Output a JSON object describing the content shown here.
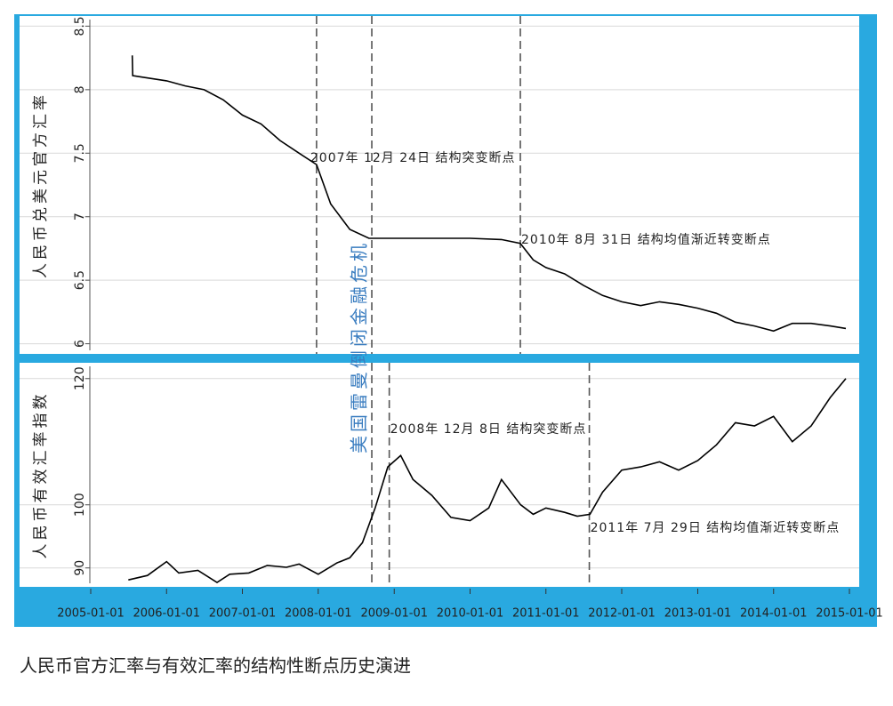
{
  "caption": "人民币官方汇率与有效汇率的结构性断点历史演进",
  "annotation": "美国雷曼倒闭金融危机",
  "chart_data": [
    {
      "type": "line",
      "ylabel": "人民币兑美元官方汇率",
      "color": "#000000",
      "xlim": [
        "2005-01-01",
        "2015-01-01"
      ],
      "ylim": [
        5.92,
        8.58
      ],
      "yticks": [
        6,
        6.5,
        7,
        7.5,
        8,
        8.5
      ],
      "grid": true,
      "x": [
        "2005-07-20",
        "2005-07-22",
        "2005-09-01",
        "2006-01-01",
        "2006-04-01",
        "2006-07-01",
        "2006-10-01",
        "2007-01-01",
        "2007-04-01",
        "2007-07-01",
        "2007-10-01",
        "2007-12-24",
        "2008-03-01",
        "2008-06-01",
        "2008-09-01",
        "2009-01-01",
        "2009-06-01",
        "2010-01-01",
        "2010-06-01",
        "2010-08-31",
        "2010-11-01",
        "2011-01-01",
        "2011-04-01",
        "2011-07-01",
        "2011-10-01",
        "2012-01-01",
        "2012-04-01",
        "2012-07-01",
        "2012-10-01",
        "2013-01-01",
        "2013-04-01",
        "2013-07-01",
        "2013-10-01",
        "2014-01-01",
        "2014-04-01",
        "2014-07-01",
        "2014-10-01",
        "2014-12-15"
      ],
      "values": [
        8.27,
        8.11,
        8.1,
        8.07,
        8.03,
        8.0,
        7.92,
        7.8,
        7.73,
        7.6,
        7.5,
        7.41,
        7.1,
        6.9,
        6.83,
        6.83,
        6.83,
        6.83,
        6.82,
        6.79,
        6.66,
        6.6,
        6.55,
        6.46,
        6.38,
        6.33,
        6.3,
        6.33,
        6.31,
        6.28,
        6.24,
        6.17,
        6.14,
        6.1,
        6.16,
        6.16,
        6.14,
        6.12
      ],
      "vlines": [
        {
          "x": "2007-12-24",
          "label": "2007年 12月 24日 结构突变断点"
        },
        {
          "x": "2008-09-15"
        },
        {
          "x": "2010-08-31",
          "label": "2010年 8月 31日 结构均值渐近转变断点"
        }
      ]
    },
    {
      "type": "line",
      "ylabel": "人民币有效汇率指数",
      "color": "#000000",
      "xlim": [
        "2005-01-01",
        "2015-01-01"
      ],
      "ylim": [
        87,
        122.5
      ],
      "yticks": [
        90,
        100,
        120
      ],
      "grid": true,
      "xticks": [
        "2005-01-01",
        "2006-01-01",
        "2007-01-01",
        "2008-01-01",
        "2009-01-01",
        "2010-01-01",
        "2011-01-01",
        "2012-01-01",
        "2013-01-01",
        "2014-01-01",
        "2015-01-01"
      ],
      "x": [
        "2005-07-01",
        "2005-10-01",
        "2006-01-01",
        "2006-03-01",
        "2006-06-01",
        "2006-09-01",
        "2006-11-01",
        "2007-02-01",
        "2007-05-01",
        "2007-08-01",
        "2007-10-01",
        "2008-01-01",
        "2008-04-01",
        "2008-06-01",
        "2008-08-01",
        "2008-10-01",
        "2008-12-01",
        "2009-02-01",
        "2009-04-01",
        "2009-07-01",
        "2009-10-01",
        "2010-01-01",
        "2010-04-01",
        "2010-06-01",
        "2010-09-01",
        "2010-11-01",
        "2011-01-01",
        "2011-04-01",
        "2011-06-01",
        "2011-08-01",
        "2011-10-01",
        "2012-01-01",
        "2012-04-01",
        "2012-07-01",
        "2012-10-01",
        "2013-01-01",
        "2013-04-01",
        "2013-07-01",
        "2013-10-01",
        "2014-01-01",
        "2014-04-01",
        "2014-07-01",
        "2014-10-01",
        "2014-12-15"
      ],
      "values": [
        88.1,
        88.8,
        91.0,
        89.2,
        89.6,
        87.7,
        89.0,
        89.2,
        90.4,
        90.1,
        90.6,
        89.0,
        90.8,
        91.6,
        94.0,
        99.5,
        106,
        107.8,
        104,
        101.5,
        98.0,
        97.5,
        99.5,
        104,
        100,
        98.5,
        99.5,
        98.8,
        98.2,
        98.5,
        102,
        105.5,
        106,
        106.8,
        105.5,
        107,
        109.5,
        113,
        112.5,
        114,
        110,
        112.5,
        117,
        120
      ],
      "vlines": [
        {
          "x": "2008-09-15"
        },
        {
          "x": "2008-12-08",
          "label": "2008年 12月 8日 结构突变断点"
        },
        {
          "x": "2011-07-29",
          "label": "2011年 7月 29日 结构均值渐近转变断点"
        }
      ]
    }
  ]
}
